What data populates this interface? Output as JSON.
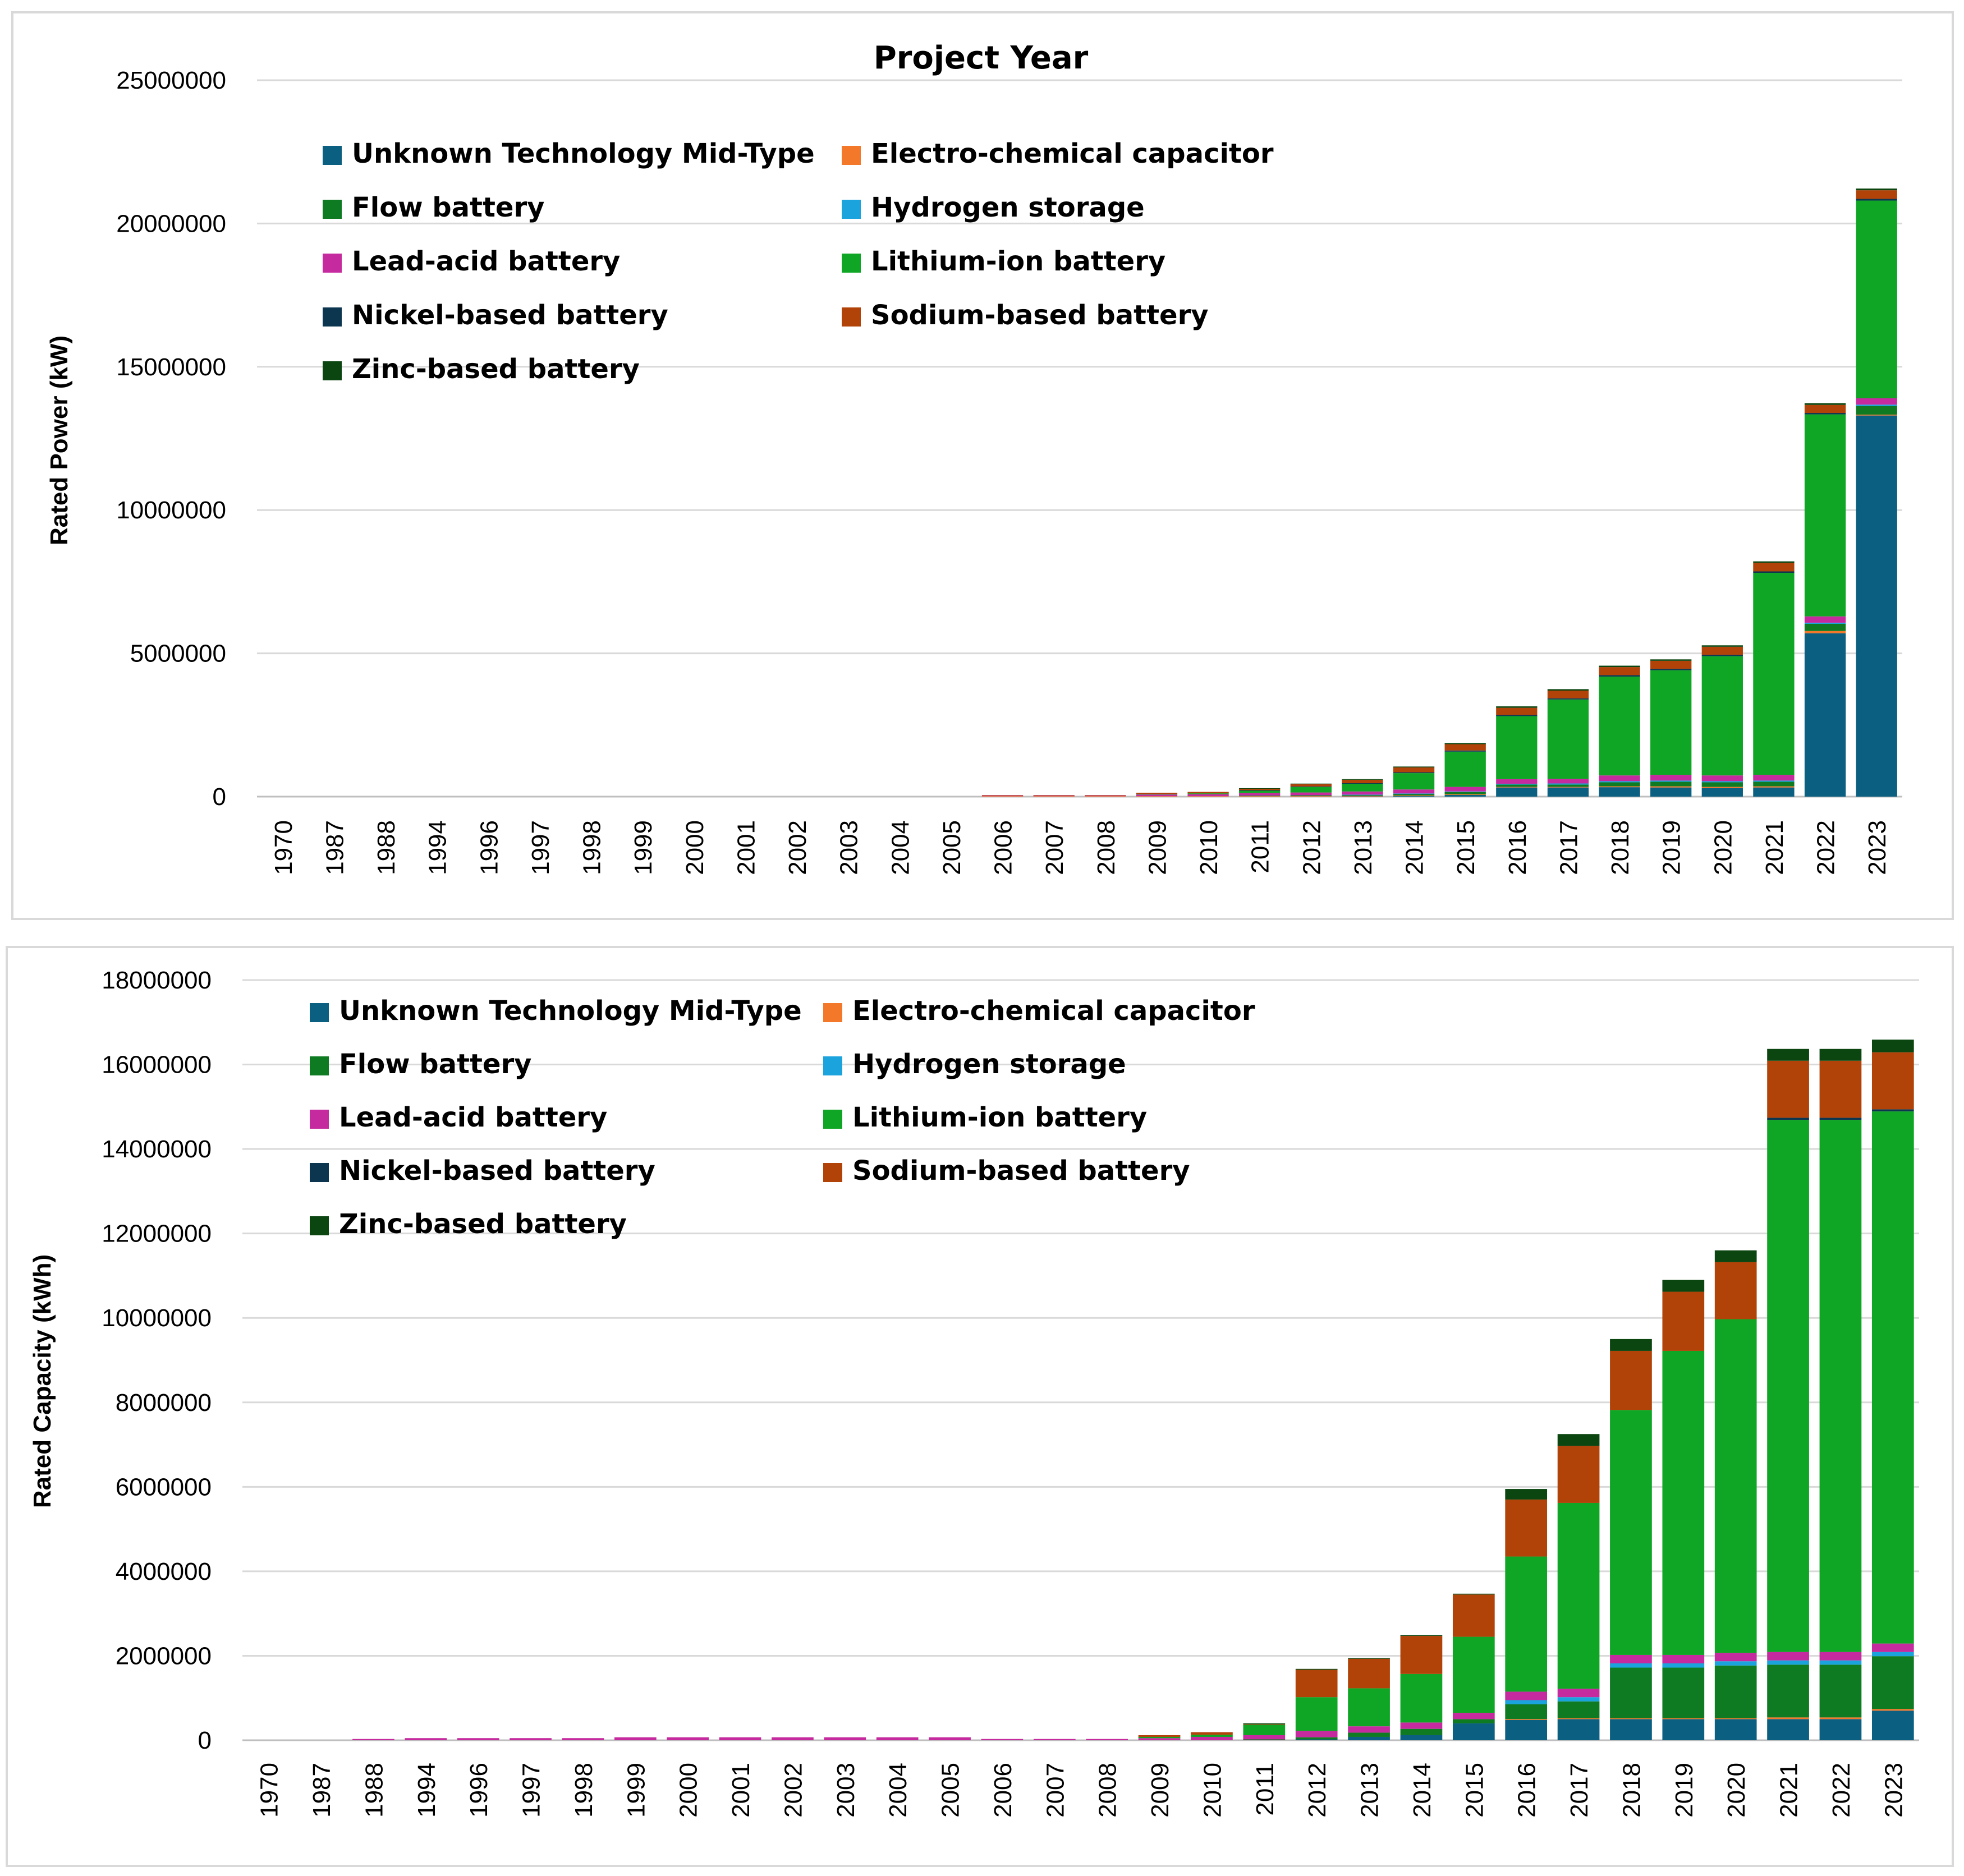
{
  "series_colors": {
    "Unknown Technology Mid-Type": "#0b5f80",
    "Electro-chemical capacitor": "#f4782a",
    "Flow battery": "#0e7a22",
    "Hydrogen storage": "#1aa3dc",
    "Lead-acid battery": "#c52b9e",
    "Lithium-ion battery": "#0ea624",
    "Nickel-based battery": "#0c3650",
    "Sodium-based battery": "#b14208",
    "Zinc-based battery": "#0b4510"
  },
  "chart_data": [
    {
      "type": "bar",
      "stacked": true,
      "title": "Project Year",
      "xlabel": "",
      "ylabel": "Rated Power (kW)",
      "ylim": [
        0,
        25000000
      ],
      "yticks": [
        "0",
        "5000000",
        "10000000",
        "15000000",
        "20000000",
        "25000000"
      ],
      "legend_position": "top-left",
      "legend": [
        "Unknown Technology Mid-Type",
        "Electro-chemical capacitor",
        "Flow battery",
        "Hydrogen storage",
        "Lead-acid battery",
        "Lithium-ion battery",
        "Nickel-based battery",
        "Sodium-based battery",
        "Zinc-based battery"
      ],
      "categories": [
        "1970",
        "1987",
        "1988",
        "1994",
        "1996",
        "1997",
        "1998",
        "1999",
        "2000",
        "2001",
        "2002",
        "2003",
        "2004",
        "2005",
        "2006",
        "2007",
        "2008",
        "2009",
        "2010",
        "2011",
        "2012",
        "2013",
        "2014",
        "2015",
        "2016",
        "2017",
        "2018",
        "2019",
        "2020",
        "2021",
        "2022",
        "2023"
      ],
      "series": [
        {
          "name": "Unknown Technology Mid-Type",
          "values": [
            0,
            0,
            0,
            0,
            0,
            0,
            0,
            0,
            0,
            0,
            0,
            0,
            0,
            0,
            0,
            0,
            0,
            0,
            0,
            0,
            0,
            10000,
            20000,
            60000,
            320000,
            320000,
            330000,
            320000,
            300000,
            320000,
            5700000,
            13300000
          ]
        },
        {
          "name": "Electro-chemical capacitor",
          "values": [
            0,
            0,
            0,
            0,
            0,
            0,
            0,
            0,
            0,
            0,
            0,
            0,
            0,
            0,
            15000,
            15000,
            15000,
            15000,
            15000,
            15000,
            15000,
            15000,
            20000,
            20000,
            20000,
            20000,
            30000,
            40000,
            40000,
            40000,
            80000,
            30000
          ]
        },
        {
          "name": "Flow battery",
          "values": [
            0,
            0,
            0,
            0,
            0,
            0,
            0,
            0,
            0,
            0,
            0,
            0,
            0,
            0,
            0,
            0,
            0,
            0,
            0,
            20000,
            30000,
            40000,
            60000,
            80000,
            80000,
            80000,
            140000,
            160000,
            160000,
            160000,
            250000,
            300000
          ]
        },
        {
          "name": "Hydrogen storage",
          "values": [
            0,
            0,
            0,
            0,
            0,
            0,
            0,
            0,
            0,
            0,
            0,
            0,
            0,
            0,
            0,
            0,
            0,
            0,
            0,
            0,
            0,
            5000,
            10000,
            20000,
            30000,
            40000,
            40000,
            40000,
            40000,
            40000,
            40000,
            50000
          ]
        },
        {
          "name": "Lead-acid battery",
          "values": [
            0,
            0,
            0,
            0,
            0,
            0,
            0,
            0,
            0,
            0,
            0,
            0,
            0,
            0,
            20000,
            20000,
            20000,
            60000,
            70000,
            90000,
            100000,
            110000,
            140000,
            160000,
            160000,
            160000,
            200000,
            200000,
            200000,
            200000,
            220000,
            220000
          ]
        },
        {
          "name": "Lithium-ion battery",
          "values": [
            0,
            0,
            0,
            0,
            0,
            0,
            0,
            0,
            0,
            0,
            0,
            0,
            0,
            0,
            0,
            0,
            0,
            20000,
            30000,
            80000,
            190000,
            270000,
            570000,
            1230000,
            2200000,
            2770000,
            3450000,
            3650000,
            4160000,
            7050000,
            7050000,
            6900000
          ]
        },
        {
          "name": "Nickel-based battery",
          "values": [
            0,
            0,
            0,
            0,
            0,
            0,
            0,
            0,
            0,
            0,
            0,
            0,
            0,
            0,
            0,
            0,
            0,
            0,
            0,
            20000,
            20000,
            20000,
            30000,
            40000,
            40000,
            40000,
            50000,
            50000,
            50000,
            50000,
            50000,
            60000
          ]
        },
        {
          "name": "Sodium-based battery",
          "values": [
            0,
            0,
            0,
            0,
            0,
            0,
            0,
            0,
            0,
            0,
            0,
            0,
            0,
            0,
            20000,
            20000,
            20000,
            40000,
            50000,
            60000,
            80000,
            120000,
            170000,
            220000,
            250000,
            270000,
            280000,
            280000,
            280000,
            300000,
            280000,
            300000
          ]
        },
        {
          "name": "Zinc-based battery",
          "values": [
            0,
            0,
            0,
            0,
            0,
            0,
            0,
            0,
            0,
            0,
            0,
            0,
            0,
            0,
            0,
            0,
            0,
            0,
            0,
            10000,
            20000,
            20000,
            30000,
            40000,
            50000,
            50000,
            50000,
            50000,
            50000,
            50000,
            60000,
            60000
          ]
        }
      ]
    },
    {
      "type": "bar",
      "stacked": true,
      "title": "",
      "xlabel": "",
      "ylabel": "Rated Capacity (kWh)",
      "ylim": [
        0,
        18000000
      ],
      "yticks": [
        "0",
        "2000000",
        "4000000",
        "6000000",
        "8000000",
        "10000000",
        "12000000",
        "14000000",
        "16000000",
        "18000000"
      ],
      "legend_position": "top-left",
      "legend": [
        "Unknown Technology Mid-Type",
        "Electro-chemical capacitor",
        "Flow battery",
        "Hydrogen storage",
        "Lead-acid battery",
        "Lithium-ion battery",
        "Nickel-based battery",
        "Sodium-based battery",
        "Zinc-based battery"
      ],
      "categories": [
        "1970",
        "1987",
        "1988",
        "1994",
        "1996",
        "1997",
        "1998",
        "1999",
        "2000",
        "2001",
        "2002",
        "2003",
        "2004",
        "2005",
        "2006",
        "2007",
        "2008",
        "2009",
        "2010",
        "2011",
        "2012",
        "2013",
        "2014",
        "2015",
        "2016",
        "2017",
        "2018",
        "2019",
        "2020",
        "2021",
        "2022",
        "2023"
      ],
      "series": [
        {
          "name": "Unknown Technology Mid-Type",
          "values": [
            0,
            0,
            0,
            0,
            0,
            0,
            0,
            0,
            0,
            0,
            0,
            0,
            0,
            0,
            0,
            0,
            0,
            0,
            0,
            0,
            20000,
            80000,
            120000,
            400000,
            480000,
            500000,
            500000,
            500000,
            500000,
            500000,
            500000,
            700000
          ]
        },
        {
          "name": "Electro-chemical capacitor",
          "values": [
            0,
            0,
            0,
            0,
            0,
            0,
            0,
            0,
            0,
            0,
            0,
            0,
            0,
            0,
            0,
            0,
            0,
            0,
            0,
            0,
            0,
            0,
            0,
            0,
            20000,
            20000,
            20000,
            20000,
            20000,
            40000,
            40000,
            40000
          ]
        },
        {
          "name": "Flow battery",
          "values": [
            0,
            0,
            0,
            0,
            0,
            0,
            0,
            0,
            0,
            0,
            0,
            0,
            0,
            0,
            0,
            0,
            0,
            0,
            0,
            20000,
            50000,
            100000,
            150000,
            100000,
            350000,
            400000,
            1200000,
            1200000,
            1250000,
            1250000,
            1250000,
            1250000
          ]
        },
        {
          "name": "Hydrogen storage",
          "values": [
            0,
            0,
            0,
            0,
            0,
            0,
            0,
            0,
            0,
            0,
            0,
            0,
            0,
            0,
            0,
            0,
            0,
            0,
            0,
            0,
            0,
            0,
            0,
            0,
            100000,
            100000,
            100000,
            100000,
            100000,
            100000,
            100000,
            100000
          ]
        },
        {
          "name": "Lead-acid battery",
          "values": [
            0,
            0,
            30000,
            50000,
            50000,
            50000,
            50000,
            70000,
            70000,
            70000,
            70000,
            70000,
            70000,
            70000,
            30000,
            30000,
            30000,
            50000,
            80000,
            100000,
            150000,
            150000,
            150000,
            150000,
            200000,
            200000,
            200000,
            200000,
            200000,
            200000,
            200000,
            200000
          ]
        },
        {
          "name": "Lithium-ion battery",
          "values": [
            0,
            0,
            0,
            0,
            0,
            0,
            0,
            0,
            0,
            0,
            0,
            0,
            0,
            0,
            0,
            0,
            0,
            30000,
            50000,
            250000,
            800000,
            900000,
            1150000,
            1800000,
            3200000,
            4400000,
            5800000,
            7200000,
            7900000,
            12600000,
            12600000,
            12600000
          ]
        },
        {
          "name": "Nickel-based battery",
          "values": [
            0,
            0,
            0,
            0,
            0,
            0,
            0,
            0,
            0,
            0,
            0,
            0,
            0,
            0,
            0,
            0,
            0,
            0,
            0,
            0,
            0,
            0,
            0,
            0,
            0,
            0,
            0,
            0,
            0,
            50000,
            50000,
            50000
          ]
        },
        {
          "name": "Sodium-based battery",
          "values": [
            0,
            0,
            0,
            0,
            0,
            0,
            0,
            0,
            0,
            0,
            0,
            0,
            0,
            0,
            0,
            0,
            0,
            40000,
            60000,
            10000,
            650000,
            700000,
            900000,
            1000000,
            1350000,
            1350000,
            1400000,
            1400000,
            1350000,
            1350000,
            1350000,
            1350000
          ]
        },
        {
          "name": "Zinc-based battery",
          "values": [
            0,
            0,
            0,
            0,
            0,
            0,
            0,
            0,
            0,
            0,
            0,
            0,
            0,
            0,
            0,
            0,
            0,
            0,
            0,
            20000,
            20000,
            20000,
            20000,
            20000,
            250000,
            280000,
            280000,
            280000,
            280000,
            280000,
            280000,
            300000
          ]
        }
      ]
    }
  ]
}
